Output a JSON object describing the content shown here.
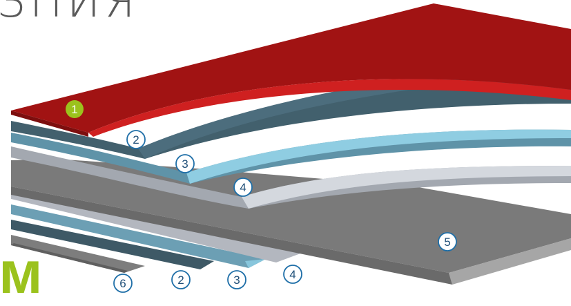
{
  "title_fragment": "ЗПИЯ",
  "brand_fragment": "м",
  "colors": {
    "red": "#a01414",
    "dark_teal": "#3f5b68",
    "light_blue": "#6aa3b8",
    "light_gray": "#b7bcc3",
    "gray": "#7c7c7c",
    "accent_green": "#9bc21d"
  },
  "markers": [
    {
      "id": "marker-1",
      "label": "1",
      "style": "filled"
    },
    {
      "id": "marker-2-top",
      "label": "2",
      "style": "outline"
    },
    {
      "id": "marker-3-top",
      "label": "3",
      "style": "outline"
    },
    {
      "id": "marker-4-top",
      "label": "4",
      "style": "outline"
    },
    {
      "id": "marker-5",
      "label": "5",
      "style": "outline"
    },
    {
      "id": "marker-6",
      "label": "6",
      "style": "outline"
    },
    {
      "id": "marker-2-bottom",
      "label": "2",
      "style": "outline"
    },
    {
      "id": "marker-3-bottom",
      "label": "3",
      "style": "outline"
    },
    {
      "id": "marker-4-bottom",
      "label": "4",
      "style": "outline"
    }
  ]
}
